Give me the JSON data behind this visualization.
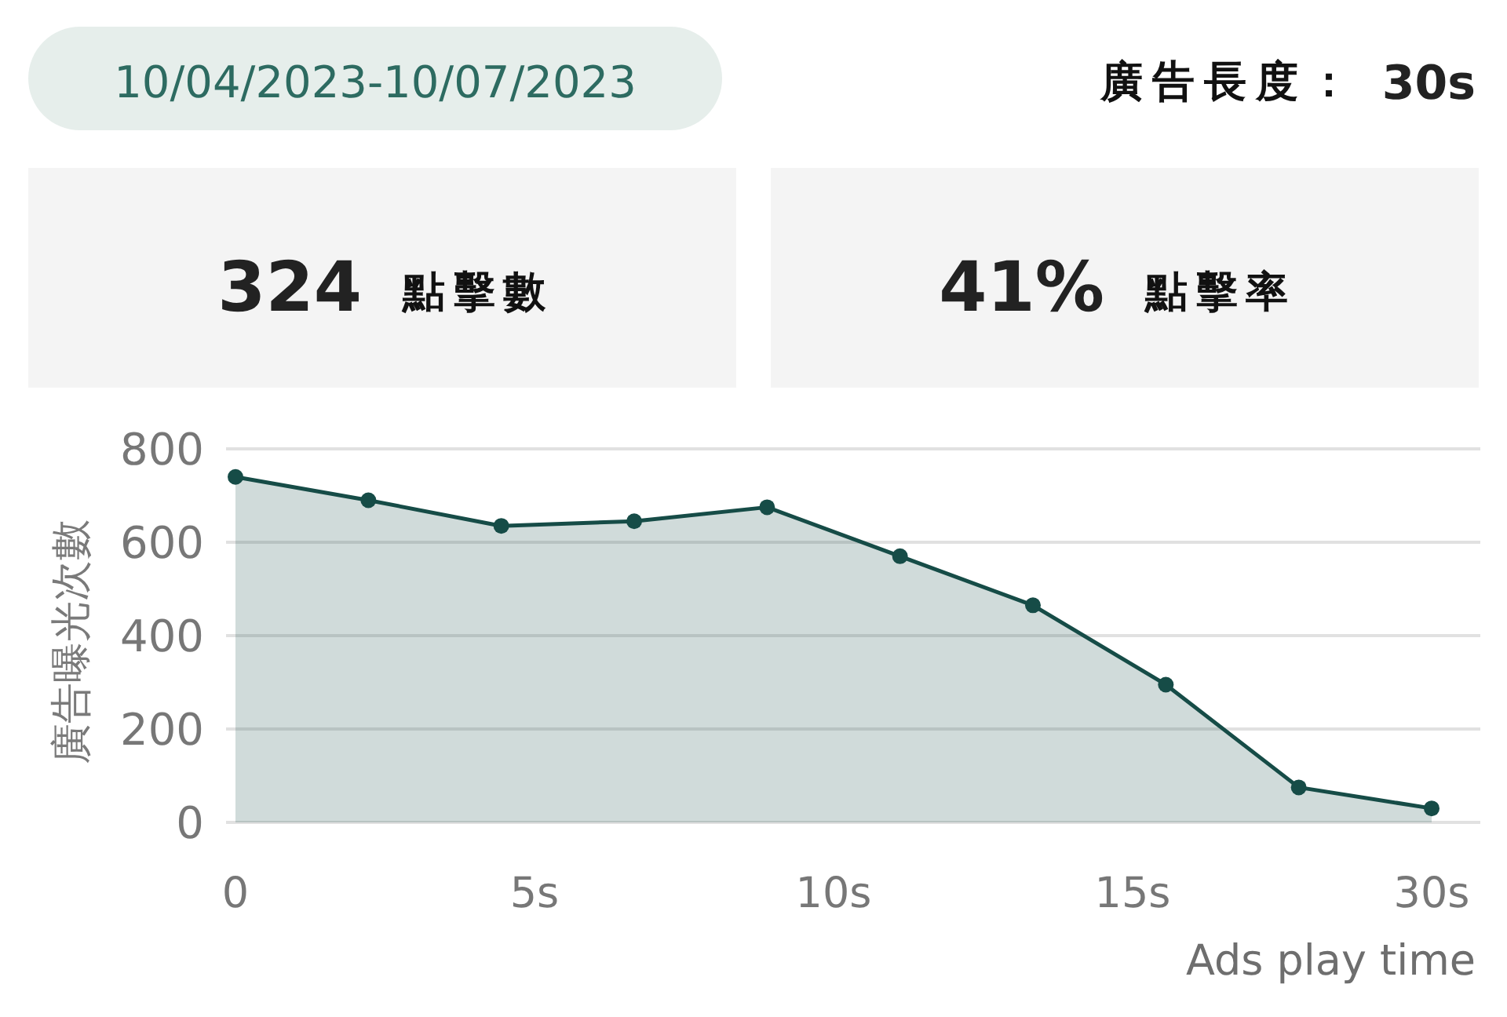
{
  "chart_data": [
    {
      "type": "other",
      "annotations": [
        "10/04/2023-10/07/2023",
        "廣告長度：",
        "30s",
        "324",
        "點擊數",
        "41%",
        "點擊率"
      ]
    },
    {
      "type": "area",
      "ylabel": "廣告曝光次數",
      "xlabel": "Ads play time",
      "categories": [
        null,
        null,
        null,
        null,
        null,
        null,
        null,
        null,
        null,
        null
      ],
      "values": [
        740,
        690,
        635,
        645,
        675,
        570,
        465,
        295,
        75,
        30
      ],
      "color": "#164c47",
      "marker": "circle",
      "ylim": [
        0,
        800
      ],
      "yticks": [
        0,
        200,
        400,
        600,
        800
      ],
      "grid": "y",
      "annotations": [
        "0",
        "5s",
        "10s",
        "15s",
        "30s"
      ]
    }
  ]
}
